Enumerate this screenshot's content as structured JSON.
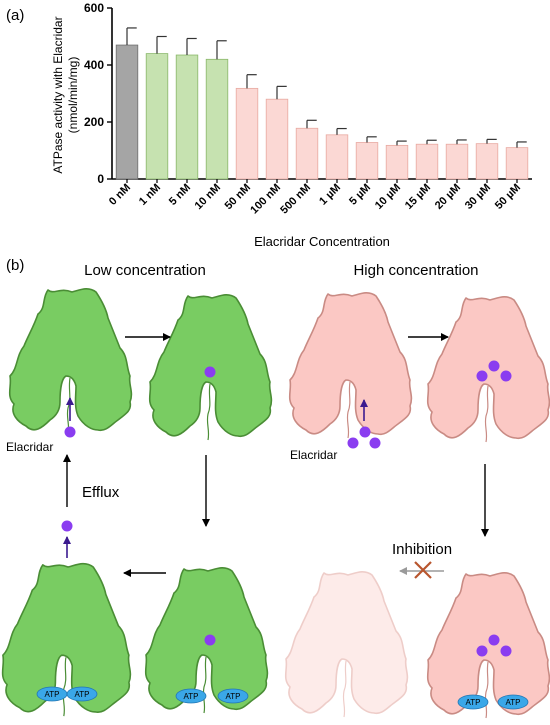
{
  "panel_a": {
    "label": "(a)"
  },
  "panel_b": {
    "label": "(b)",
    "low_title": "Low concentration",
    "high_title": "High concentration",
    "elacridar_low": "Elacridar",
    "elacridar_high": "Elacridar",
    "efflux": "Efflux",
    "inhibition": "Inhibition",
    "atp": "ATP"
  },
  "colors": {
    "grey_bar": "#a5a5a5",
    "green_bar": "#c6e2b0",
    "pink_bar": "#fbd8d4",
    "green_protein": "#79cc62",
    "pink_protein": "#fbc8c4",
    "faded_protein": "#fde3e0",
    "drug": "#8a3df0",
    "atp": "#3aa7e8"
  },
  "chart_data": {
    "type": "bar",
    "title": "",
    "xlabel": "Elacridar Concentration",
    "ylabel": "ATPase activity with Elacridar (nmol/min/mg)",
    "ylabel_lines": [
      "ATPase activity with Elacridar",
      "(nmol/min/mg)"
    ],
    "ylim": [
      0,
      600
    ],
    "yticks": [
      0,
      200,
      400,
      600
    ],
    "categories": [
      "0 nM",
      "1 nM",
      "5 nM",
      "10 nM",
      "50 nM",
      "100 nM",
      "500 nM",
      "1 µM",
      "5 µM",
      "10 µM",
      "15 µM",
      "20 µM",
      "30 µM",
      "50 µM"
    ],
    "values": [
      470,
      440,
      435,
      420,
      318,
      280,
      178,
      155,
      128,
      118,
      122,
      122,
      124,
      110
    ],
    "errors": [
      60,
      60,
      58,
      65,
      48,
      45,
      28,
      22,
      20,
      15,
      14,
      15,
      15,
      20
    ],
    "bar_groups": [
      "grey",
      "green",
      "green",
      "green",
      "pink",
      "pink",
      "pink",
      "pink",
      "pink",
      "pink",
      "pink",
      "pink",
      "pink",
      "pink"
    ]
  }
}
